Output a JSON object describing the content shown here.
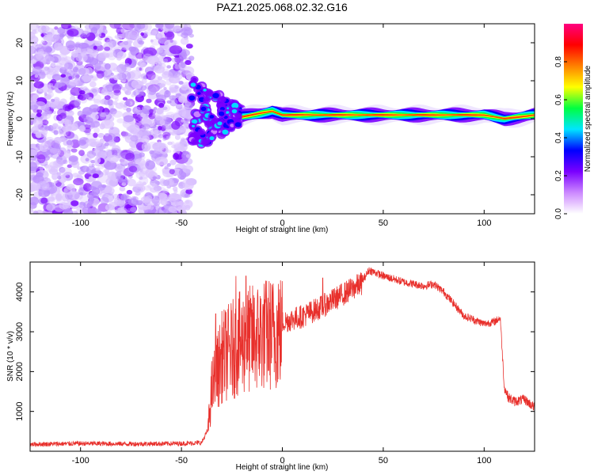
{
  "page": {
    "title": "PAZ1.2025.068.02.32.G16",
    "background": "#ffffff"
  },
  "chart_data": [
    {
      "type": "heatmap",
      "title": "PAZ1.2025.068.02.32.G16",
      "xlabel": "Height of straight line (km)",
      "ylabel": "Frequency (Hz)",
      "xlim": [
        -125,
        125
      ],
      "ylim": [
        -25,
        25
      ],
      "x_ticks": [
        -100,
        -50,
        0,
        50,
        100
      ],
      "y_ticks": [
        -20,
        -10,
        0,
        10,
        20
      ],
      "colorbar": {
        "label": "Normalized spectral amplitude",
        "range": [
          0.0,
          1.0
        ],
        "ticks": [
          0.0,
          0.2,
          0.4,
          0.6,
          0.8
        ],
        "tick_labels": [
          "0.0",
          "0.2",
          "0.4",
          "0.6",
          "0.8"
        ],
        "colors": [
          "#ffffff",
          "#cc88ff",
          "#7a00ff",
          "#0000ff",
          "#00e5ff",
          "#00ff40",
          "#ffff00",
          "#ff8000",
          "#ff0000",
          "#ff0080"
        ]
      },
      "regions": [
        {
          "x_range": [
            -125,
            -45
          ],
          "description": "scattered low-amplitude noise across all frequencies",
          "amplitude": [
            0.0,
            0.2
          ]
        },
        {
          "x_range": [
            -45,
            -20
          ],
          "description": "transition, line emerging near 0 Hz with spread ±5 Hz",
          "amplitude": [
            0.1,
            0.5
          ]
        },
        {
          "x_range": [
            -20,
            125
          ],
          "description": "narrow line near 0–1 Hz",
          "amplitude": [
            0.6,
            1.0
          ]
        }
      ],
      "line_center_hz": [
        {
          "x": -40,
          "f": 1.0
        },
        {
          "x": -20,
          "f": 0.5
        },
        {
          "x": -5,
          "f": 2.0
        },
        {
          "x": 0,
          "f": 1.0
        },
        {
          "x": 50,
          "f": 1.0
        },
        {
          "x": 100,
          "f": 1.0
        },
        {
          "x": 110,
          "f": 0.0
        },
        {
          "x": 125,
          "f": 1.0
        }
      ]
    },
    {
      "type": "line",
      "title": "",
      "xlabel": "Height of straight line (km)",
      "ylabel": "SNR (10 * v/v)",
      "xlim": [
        -125,
        125
      ],
      "ylim": [
        0,
        4750
      ],
      "x_ticks": [
        -100,
        -50,
        0,
        50,
        100
      ],
      "y_ticks": [
        1000,
        2000,
        3000,
        4000
      ],
      "line_color": "#e8302c",
      "series": [
        {
          "x": [
            -125,
            -100,
            -75,
            -50,
            -40,
            -37,
            -35,
            -30,
            -25,
            -20,
            -15,
            -10,
            -5,
            0,
            10,
            20,
            30,
            40,
            43,
            50,
            60,
            70,
            75,
            80,
            85,
            90,
            95,
            100,
            105,
            108,
            110,
            112,
            115,
            120,
            125
          ],
          "y": [
            150,
            170,
            160,
            170,
            190,
            500,
            1700,
            2600,
            2800,
            3000,
            3100,
            3200,
            3250,
            3300,
            3450,
            3700,
            4000,
            4300,
            4550,
            4400,
            4250,
            4150,
            4200,
            4000,
            3700,
            3400,
            3300,
            3200,
            3250,
            3350,
            1600,
            1350,
            1250,
            1300,
            1100
          ]
        }
      ],
      "spikes": [
        {
          "x": -33,
          "y": 3450
        },
        {
          "x": -23,
          "y": 4400
        },
        {
          "x": -18,
          "y": 4400
        },
        {
          "x": -8,
          "y": 3800
        },
        {
          "x": -2,
          "y": 4200
        },
        {
          "x": 20,
          "y": 4350
        }
      ]
    }
  ]
}
